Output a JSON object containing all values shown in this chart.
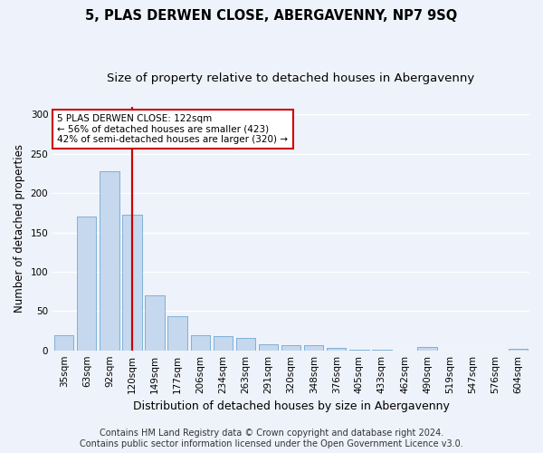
{
  "title": "5, PLAS DERWEN CLOSE, ABERGAVENNY, NP7 9SQ",
  "subtitle": "Size of property relative to detached houses in Abergavenny",
  "xlabel": "Distribution of detached houses by size in Abergavenny",
  "ylabel": "Number of detached properties",
  "categories": [
    "35sqm",
    "63sqm",
    "92sqm",
    "120sqm",
    "149sqm",
    "177sqm",
    "206sqm",
    "234sqm",
    "263sqm",
    "291sqm",
    "320sqm",
    "348sqm",
    "376sqm",
    "405sqm",
    "433sqm",
    "462sqm",
    "490sqm",
    "519sqm",
    "547sqm",
    "576sqm",
    "604sqm"
  ],
  "values": [
    19,
    170,
    228,
    172,
    70,
    43,
    19,
    18,
    16,
    8,
    6,
    6,
    3,
    1,
    1,
    0,
    4,
    0,
    0,
    0,
    2
  ],
  "bar_color": "#c5d8ee",
  "bar_edgecolor": "#7aafd4",
  "vline_x_index": 3,
  "vline_color": "#cc0000",
  "annotation_text": "5 PLAS DERWEN CLOSE: 122sqm\n← 56% of detached houses are smaller (423)\n42% of semi-detached houses are larger (320) →",
  "annotation_box_color": "#ffffff",
  "annotation_box_edgecolor": "#cc0000",
  "ylim": [
    0,
    310
  ],
  "yticks": [
    0,
    50,
    100,
    150,
    200,
    250,
    300
  ],
  "footer_line1": "Contains HM Land Registry data © Crown copyright and database right 2024.",
  "footer_line2": "Contains public sector information licensed under the Open Government Licence v3.0.",
  "bg_color": "#eef2fa",
  "grid_color": "#ffffff",
  "title_fontsize": 10.5,
  "subtitle_fontsize": 9.5,
  "xlabel_fontsize": 9,
  "ylabel_fontsize": 8.5,
  "tick_fontsize": 7.5,
  "annotation_fontsize": 7.5,
  "footer_fontsize": 7
}
